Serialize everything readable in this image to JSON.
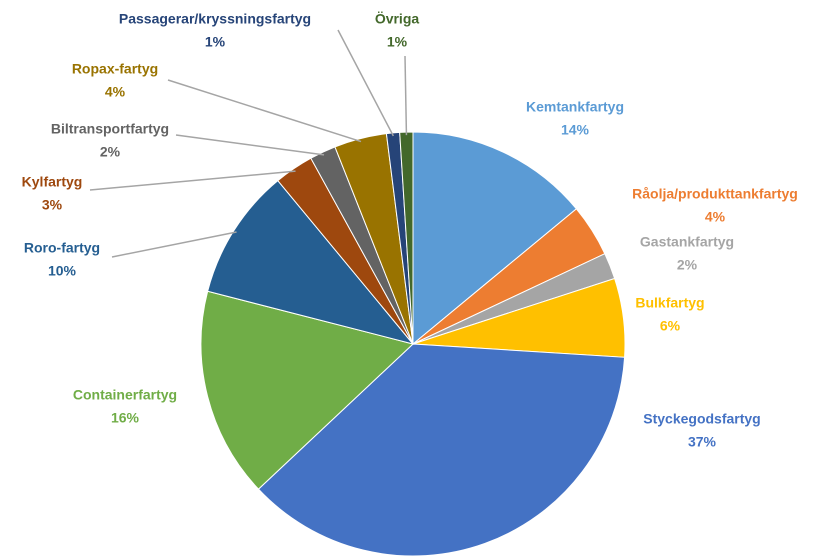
{
  "chart_data": {
    "type": "pie",
    "categories": [
      "Kemtankfartyg",
      "Råolja/produkttankfartyg",
      "Gastankfartyg",
      "Bulkfartyg",
      "Styckegodsfartyg",
      "Containerfartyg",
      "Roro-fartyg",
      "Kylfartyg",
      "Biltransportfartyg",
      "Ropax-fartyg",
      "Passagerar/kryssningsfartyg",
      "Övriga"
    ],
    "values": [
      14,
      4,
      2,
      6,
      37,
      16,
      10,
      3,
      2,
      4,
      1,
      1
    ],
    "value_labels": [
      "14%",
      "4%",
      "2%",
      "6%",
      "37%",
      "16%",
      "10%",
      "3%",
      "2%",
      "4%",
      "1%",
      "1%"
    ],
    "colors": [
      "#5b9bd5",
      "#ed7d31",
      "#a5a5a5",
      "#ffc000",
      "#4472c4",
      "#70ad47",
      "#255e91",
      "#9e480e",
      "#636363",
      "#997300",
      "#264478",
      "#43682b"
    ]
  }
}
